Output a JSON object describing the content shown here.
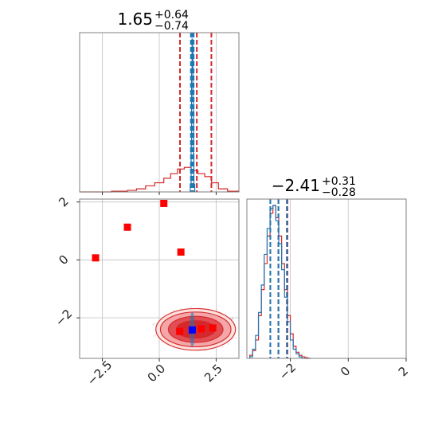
{
  "chart_data": {
    "type": "corner",
    "panels": [
      {
        "id": "p0",
        "kind": "histogram",
        "title": {
          "median": "1.65",
          "upper": "+0.64",
          "lower": "−0.74"
        },
        "xlim": [
          -3.5,
          3.5
        ],
        "grid_x": [
          -2.5,
          0.0,
          2.5
        ],
        "tick_x": [
          -2.5,
          0.0,
          2.5
        ],
        "tick_labels_shown": false,
        "series": [
          {
            "name": "",
            "color": "#d62728",
            "bins": [
              -3.5,
              -2.8,
              -2.1,
              -1.4,
              -1.0,
              -0.6,
              -0.2,
              0.2,
              0.5,
              0.8,
              1.1,
              1.4,
              1.7,
              2.0,
              2.3,
              2.6,
              3.0,
              3.5
            ],
            "counts": [
              0.0,
              0.0,
              0.005,
              0.01,
              0.02,
              0.04,
              0.06,
              0.09,
              0.12,
              0.15,
              0.16,
              0.14,
              0.12,
              0.1,
              0.06,
              0.02,
              0.005
            ]
          },
          {
            "name": "",
            "color": "#1f77b4",
            "bins": [
              1.36,
              1.4,
              1.42,
              1.44,
              1.46,
              1.48,
              1.5,
              1.52,
              1.56
            ],
            "counts": [
              0.05,
              0.3,
              0.8,
              1.0,
              0.95,
              0.6,
              0.25,
              0.05
            ]
          }
        ],
        "quantile_lines": [
          {
            "color": "#d62728",
            "x": [
              0.91,
              1.65,
              2.29
            ]
          },
          {
            "color": "#1f77b4",
            "x": [
              1.39,
              1.45,
              1.51
            ]
          }
        ]
      },
      {
        "id": "p1",
        "kind": "histogram",
        "title": {
          "median": "−2.41",
          "upper": "+0.31",
          "lower": "−0.28"
        },
        "xlim": [
          -3.5,
          2.0
        ],
        "grid_x": [
          -2,
          0,
          2
        ],
        "tick_x": [
          -2,
          0,
          2
        ],
        "tick_labels": [
          "−2",
          "0",
          "2"
        ],
        "series": [
          {
            "name": "",
            "color": "#d62728",
            "bins": [
              -3.4,
              -3.3,
              -3.2,
              -3.1,
              -3.0,
              -2.9,
              -2.8,
              -2.7,
              -2.6,
              -2.5,
              -2.4,
              -2.3,
              -2.2,
              -2.1,
              -2.0,
              -1.9,
              -1.8,
              -1.7,
              -1.6,
              -1.5,
              -1.4,
              -1.3
            ],
            "counts": [
              0.02,
              0.05,
              0.12,
              0.28,
              0.45,
              0.62,
              0.8,
              0.95,
              1.0,
              0.92,
              0.8,
              0.62,
              0.45,
              0.28,
              0.16,
              0.08,
              0.04,
              0.02,
              0.01,
              0.005,
              0.0
            ]
          },
          {
            "name": "",
            "color": "#1f77b4",
            "bins": [
              -3.4,
              -3.3,
              -3.2,
              -3.1,
              -3.0,
              -2.9,
              -2.8,
              -2.7,
              -2.6,
              -2.5,
              -2.4,
              -2.3,
              -2.2,
              -2.1,
              -2.0,
              -1.9,
              -1.8,
              -1.7,
              -1.6,
              -1.5,
              -1.4,
              -1.3
            ],
            "counts": [
              0.01,
              0.06,
              0.15,
              0.3,
              0.48,
              0.68,
              0.85,
              0.98,
              1.0,
              0.9,
              0.75,
              0.58,
              0.4,
              0.24,
              0.12,
              0.06,
              0.03,
              0.01,
              0.0,
              0.0,
              0.0
            ]
          }
        ],
        "quantile_lines": [
          {
            "color": "#d62728",
            "x": [
              -2.69,
              -2.41,
              -2.1
            ]
          },
          {
            "color": "#1f77b4",
            "x": [
              -2.69,
              -2.41,
              -2.12
            ]
          }
        ]
      },
      {
        "id": "p2",
        "kind": "scatter2d",
        "xlim": [
          -3.5,
          3.5
        ],
        "ylim": [
          -3.4,
          2.1
        ],
        "grid_x": [
          -2.5,
          0.0,
          2.5
        ],
        "grid_y": [
          -2,
          0,
          2
        ],
        "tick_x": [
          -2.5,
          0.0,
          2.5
        ],
        "tick_x_labels": [
          "−2.5",
          "0.0",
          "2.5"
        ],
        "tick_y": [
          -2,
          0,
          2
        ],
        "tick_y_labels": [
          "−2",
          "0",
          "2"
        ],
        "contours": [
          {
            "color": "#fde0dd",
            "cx": 1.6,
            "cy": -2.4,
            "rx": 1.75,
            "ry": 0.72
          },
          {
            "color": "#f4a3a6",
            "cx": 1.6,
            "cy": -2.4,
            "rx": 1.55,
            "ry": 0.6
          },
          {
            "color": "#e04a4f",
            "cx": 1.6,
            "cy": -2.4,
            "rx": 1.2,
            "ry": 0.45
          },
          {
            "color": "#d62728",
            "cx": 1.6,
            "cy": -2.4,
            "rx": 0.85,
            "ry": 0.3
          }
        ],
        "blue_core": {
          "color": "#1f77b4",
          "cx": 1.45,
          "cy": -2.4,
          "rx": 0.12,
          "ry": 0.6
        },
        "markers": [
          {
            "x": -2.8,
            "y": 0.07,
            "color": "#ff0000"
          },
          {
            "x": -1.4,
            "y": 1.13,
            "color": "#ff0000"
          },
          {
            "x": 0.2,
            "y": 1.95,
            "color": "#ff0000"
          },
          {
            "x": 0.95,
            "y": 0.27,
            "color": "#ff0000"
          },
          {
            "x": 0.9,
            "y": -2.47,
            "color": "#ff0000"
          },
          {
            "x": 1.85,
            "y": -2.38,
            "color": "#ff0000"
          },
          {
            "x": 2.35,
            "y": -2.35,
            "color": "#ff0000"
          },
          {
            "x": 1.45,
            "y": -2.42,
            "color": "#0000ff"
          }
        ]
      }
    ]
  }
}
